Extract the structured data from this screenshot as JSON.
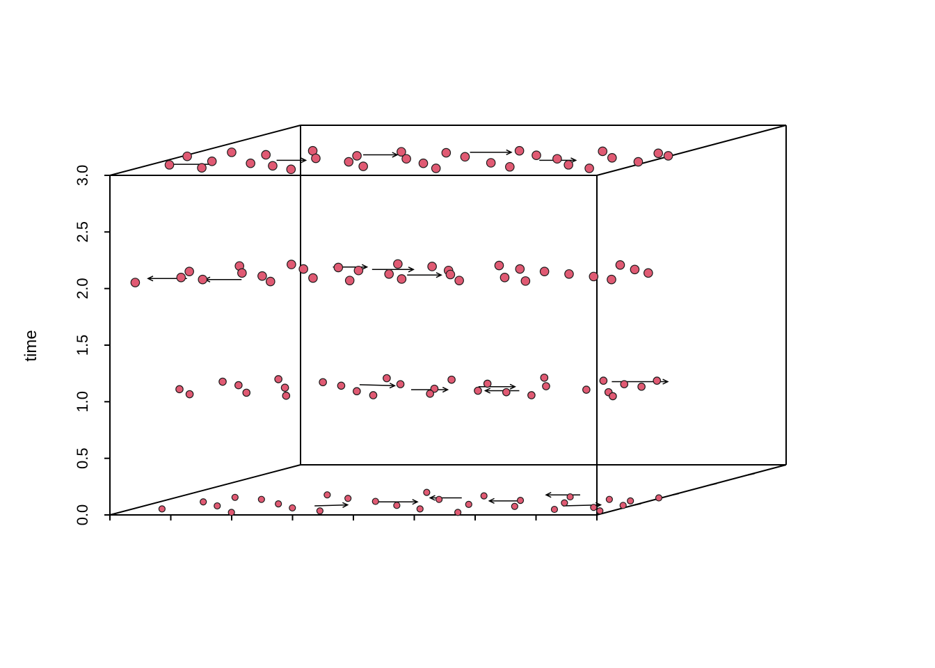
{
  "chart_data": {
    "type": "scatter",
    "title": "",
    "subtitle": "",
    "xlabel": "",
    "ylabel": "",
    "zlabel": "time",
    "zlim": [
      0,
      3
    ],
    "z_ticks": [
      0.0,
      0.5,
      1.0,
      1.5,
      2.0,
      2.5,
      3.0
    ],
    "z_tick_labels": [
      "0.0",
      "0.5",
      "1.0",
      "1.5",
      "2.0",
      "2.5",
      "3.0"
    ],
    "grid": false,
    "legend": "none",
    "colors": {
      "point_fill": "#e05a73",
      "point_stroke": "#1a1a1a",
      "axis": "#000000",
      "arrow": "#000000"
    },
    "time_slices": [
      0,
      1,
      2,
      3
    ],
    "series": [
      {
        "time": 0,
        "points": [
          [
            -0.88,
            0.12
          ],
          [
            -0.82,
            0.26
          ],
          [
            -0.76,
            0.35
          ],
          [
            -0.7,
            0.18
          ],
          [
            -0.62,
            0.31
          ],
          [
            -0.54,
            0.05
          ],
          [
            -0.48,
            0.22
          ],
          [
            -0.42,
            0.4
          ],
          [
            -0.36,
            0.14
          ],
          [
            -0.28,
            0.33
          ],
          [
            -0.2,
            0.08
          ],
          [
            -0.12,
            0.27
          ],
          [
            -0.05,
            0.45
          ],
          [
            0.03,
            0.19
          ],
          [
            0.11,
            0.31
          ],
          [
            0.18,
            0.12
          ],
          [
            0.24,
            0.38
          ],
          [
            0.31,
            0.21
          ],
          [
            0.39,
            0.05
          ],
          [
            0.46,
            0.29
          ],
          [
            0.53,
            0.17
          ],
          [
            0.61,
            0.36
          ],
          [
            0.68,
            0.24
          ],
          [
            0.74,
            0.11
          ],
          [
            0.81,
            0.31
          ],
          [
            0.87,
            0.15
          ],
          [
            0.92,
            0.28
          ],
          [
            0.96,
            0.19
          ],
          [
            0.99,
            0.34
          ],
          [
            0.95,
            0.08
          ]
        ],
        "arrows": [
          [
            -0.3,
            0.18,
            -0.18,
            0.2
          ],
          [
            -0.1,
            0.26,
            0.06,
            0.26
          ],
          [
            0.18,
            0.34,
            0.05,
            0.34
          ],
          [
            0.48,
            0.28,
            0.34,
            0.28
          ],
          [
            0.62,
            0.4,
            0.48,
            0.4
          ],
          [
            0.72,
            0.18,
            0.86,
            0.2
          ]
        ]
      },
      {
        "time": 1,
        "points": [
          [
            -0.91,
            0.25
          ],
          [
            -0.85,
            0.4
          ],
          [
            -0.79,
            0.15
          ],
          [
            -0.73,
            0.33
          ],
          [
            -0.66,
            0.45
          ],
          [
            -0.58,
            0.18
          ],
          [
            -0.5,
            0.28
          ],
          [
            -0.43,
            0.39
          ],
          [
            -0.37,
            0.12
          ],
          [
            -0.3,
            0.32
          ],
          [
            -0.23,
            0.47
          ],
          [
            -0.15,
            0.21
          ],
          [
            -0.08,
            0.35
          ],
          [
            -0.02,
            0.13
          ],
          [
            0.06,
            0.44
          ],
          [
            0.13,
            0.26
          ],
          [
            0.19,
            0.16
          ],
          [
            0.27,
            0.36
          ],
          [
            0.34,
            0.22
          ],
          [
            0.41,
            0.48
          ],
          [
            0.48,
            0.19
          ],
          [
            0.55,
            0.31
          ],
          [
            0.63,
            0.13
          ],
          [
            0.7,
            0.42
          ],
          [
            0.77,
            0.24
          ],
          [
            0.84,
            0.35
          ],
          [
            0.9,
            0.19
          ],
          [
            0.95,
            0.3
          ],
          [
            0.98,
            0.11
          ],
          [
            0.92,
            0.42
          ]
        ],
        "arrows": [
          [
            -0.24,
            0.34,
            -0.08,
            0.32
          ],
          [
            0.05,
            0.24,
            0.2,
            0.24
          ],
          [
            0.28,
            0.3,
            0.43,
            0.3
          ],
          [
            0.51,
            0.22,
            0.37,
            0.22
          ],
          [
            0.75,
            0.4,
            0.98,
            0.4
          ]
        ]
      },
      {
        "time": 2,
        "points": [
          [
            -0.99,
            0.12
          ],
          [
            -0.94,
            0.34
          ],
          [
            -0.88,
            0.22
          ],
          [
            -0.82,
            0.45
          ],
          [
            -0.76,
            0.18
          ],
          [
            -0.7,
            0.31
          ],
          [
            -0.63,
            0.48
          ],
          [
            -0.57,
            0.25
          ],
          [
            -0.51,
            0.39
          ],
          [
            -0.45,
            0.14
          ],
          [
            -0.39,
            0.42
          ],
          [
            -0.33,
            0.21
          ],
          [
            -0.26,
            0.36
          ],
          [
            -0.2,
            0.49
          ],
          [
            -0.14,
            0.16
          ],
          [
            -0.08,
            0.29
          ],
          [
            -0.02,
            0.44
          ],
          [
            0.05,
            0.19
          ],
          [
            0.11,
            0.36
          ],
          [
            0.18,
            0.28
          ],
          [
            0.24,
            0.46
          ],
          [
            0.31,
            0.16
          ],
          [
            0.38,
            0.39
          ],
          [
            0.45,
            0.22
          ],
          [
            0.52,
            0.34
          ],
          [
            0.59,
            0.15
          ],
          [
            0.66,
            0.29
          ],
          [
            0.73,
            0.47
          ],
          [
            0.8,
            0.24
          ],
          [
            0.86,
            0.38
          ],
          [
            0.92,
            0.18
          ],
          [
            0.97,
            0.31
          ]
        ],
        "arrows": [
          [
            -0.84,
            0.2,
            -1.0,
            0.2
          ],
          [
            -0.6,
            0.18,
            -0.75,
            0.18
          ],
          [
            -0.42,
            0.43,
            -0.28,
            0.43
          ],
          [
            -0.22,
            0.38,
            -0.05,
            0.38
          ],
          [
            0.01,
            0.27,
            0.15,
            0.27
          ]
        ]
      },
      {
        "time": 3,
        "points": [
          [
            -0.98,
            0.38
          ],
          [
            -0.92,
            0.21
          ],
          [
            -0.86,
            0.46
          ],
          [
            -0.8,
            0.28
          ],
          [
            -0.74,
            0.15
          ],
          [
            -0.68,
            0.41
          ],
          [
            -0.61,
            0.24
          ],
          [
            -0.55,
            0.49
          ],
          [
            -0.48,
            0.19
          ],
          [
            -0.42,
            0.34
          ],
          [
            -0.35,
            0.12
          ],
          [
            -0.29,
            0.39
          ],
          [
            -0.23,
            0.27
          ],
          [
            -0.17,
            0.47
          ],
          [
            -0.1,
            0.18
          ],
          [
            -0.04,
            0.33
          ],
          [
            0.03,
            0.45
          ],
          [
            0.1,
            0.24
          ],
          [
            0.17,
            0.37
          ],
          [
            0.23,
            0.14
          ],
          [
            0.3,
            0.49
          ],
          [
            0.37,
            0.25
          ],
          [
            0.44,
            0.4
          ],
          [
            0.51,
            0.17
          ],
          [
            0.58,
            0.33
          ],
          [
            0.65,
            0.48
          ],
          [
            0.72,
            0.21
          ],
          [
            0.79,
            0.35
          ],
          [
            0.86,
            0.14
          ],
          [
            0.91,
            0.44
          ],
          [
            0.96,
            0.27
          ],
          [
            0.99,
            0.39
          ]
        ],
        "arrows": [
          [
            -0.74,
            0.22,
            -0.94,
            0.22
          ],
          [
            -0.55,
            0.3,
            -0.43,
            0.3
          ],
          [
            -0.28,
            0.41,
            -0.14,
            0.41
          ],
          [
            0.12,
            0.46,
            0.29,
            0.46
          ],
          [
            0.53,
            0.3,
            0.68,
            0.3
          ]
        ]
      }
    ]
  }
}
